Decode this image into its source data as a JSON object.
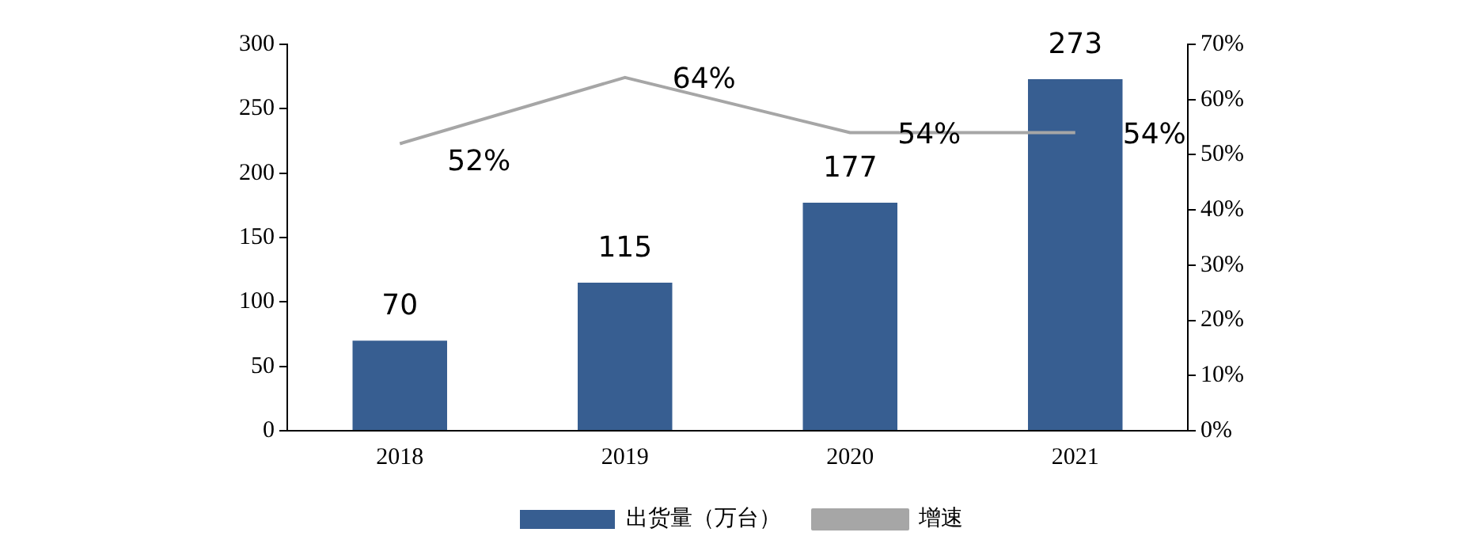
{
  "chart_data": {
    "type": "bar",
    "categories": [
      "2018",
      "2019",
      "2020",
      "2021"
    ],
    "series": [
      {
        "name": "出货量（万台）",
        "color": "#375e91",
        "values": [
          70,
          115,
          177,
          273
        ],
        "value_labels": [
          "70",
          "115",
          "177",
          "273"
        ]
      },
      {
        "name": "增速",
        "type": "line",
        "axis": "y2",
        "color": "#a6a6a6",
        "values": [
          52,
          64,
          54,
          54
        ],
        "value_labels": [
          "52%",
          "64%",
          "54%",
          "54%"
        ]
      }
    ],
    "ylim": [
      0,
      300
    ],
    "yticks": [
      0,
      50,
      100,
      150,
      200,
      250,
      300
    ],
    "y2lim": [
      0,
      70
    ],
    "y2ticks": [
      {
        "value": 0,
        "label": "0%"
      },
      {
        "value": 10,
        "label": "10%"
      },
      {
        "value": 20,
        "label": "20%"
      },
      {
        "value": 30,
        "label": "30%"
      },
      {
        "value": 40,
        "label": "40%"
      },
      {
        "value": 50,
        "label": "50%"
      },
      {
        "value": 60,
        "label": "60%"
      },
      {
        "value": 70,
        "label": "70%"
      }
    ],
    "grid": false,
    "legend": "bottom",
    "marker": "none",
    "line_style": "solid"
  }
}
